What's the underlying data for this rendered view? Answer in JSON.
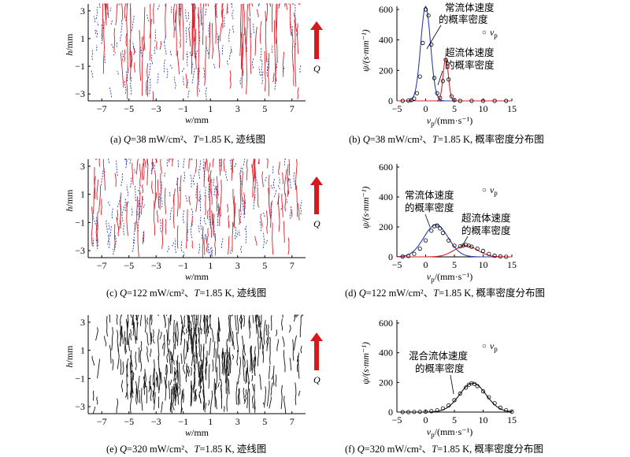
{
  "panels": {
    "a": {
      "label": "(a)",
      "q": "38",
      "Q_unit": "mW/cm²",
      "T": "1.85",
      "desc": "迹线图"
    },
    "b": {
      "label": "(b)",
      "q": "38",
      "desc": "概率密度分布图"
    },
    "c": {
      "label": "(c)",
      "q": "122",
      "desc": "迹线图"
    },
    "d": {
      "label": "(d)",
      "q": "122",
      "desc": "概率密度分布图"
    },
    "e": {
      "label": "(e)",
      "q": "320",
      "desc": "迹线图"
    },
    "f": {
      "label": "(f)",
      "q": "320",
      "desc": "概率密度分布图"
    }
  },
  "track_axes": {
    "ylabel_var": "h",
    "ylabel_unit": "/mm",
    "xlabel_var": "w",
    "xlabel_unit": "/mm",
    "xticks": [
      "−7",
      "−5",
      "−3",
      "−1",
      "1",
      "3",
      "5",
      "7"
    ],
    "yticks": [
      "3",
      "1",
      "−1",
      "−3"
    ],
    "arrow_label": "Q"
  },
  "pdf_axes": {
    "ylabel": "ψ/(s·mm⁻¹)",
    "xlabel": "v_p/(mm·s⁻¹)",
    "xticks": [
      "−5",
      "0",
      "5",
      "10",
      "15"
    ],
    "yticks": [
      "600",
      "400",
      "200",
      "0"
    ],
    "legend_marker": "○",
    "legend_text": "v_p"
  },
  "annotations": {
    "normal_1": "常流体速度",
    "normal_2": "的概率密度",
    "super_1": "超流体速度",
    "super_2": "的概率密度",
    "mixed_1": "混合流体速度",
    "mixed_2": "的概率密度"
  },
  "caption_common": {
    "T_value": "=1.85 K,",
    "sep": "、"
  },
  "colors": {
    "normal": "#2b3ea8",
    "super": "#d8202c",
    "mixed": "#111111",
    "arrow": "#d41a1a"
  },
  "chart_data": [
    {
      "type": "scatter",
      "panel": "b",
      "xlim": [
        -5,
        15
      ],
      "ylim": [
        0,
        600
      ],
      "grid": false,
      "xlabel": "v_p/(mm·s⁻¹)",
      "ylabel": "ψ/(s·mm⁻¹)",
      "legend": "top-right",
      "series": [
        {
          "name": "v_p",
          "points": [
            [
              -4,
              0
            ],
            [
              -3,
              2
            ],
            [
              -2.5,
              5
            ],
            [
              -2,
              15
            ],
            [
              -1.5,
              50
            ],
            [
              -1,
              160
            ],
            [
              -0.5,
              380
            ],
            [
              0,
              600
            ],
            [
              0.5,
              560
            ],
            [
              1,
              370
            ],
            [
              1.5,
              150
            ],
            [
              2,
              50
            ],
            [
              2.5,
              20
            ],
            [
              3,
              130
            ],
            [
              3.5,
              270
            ],
            [
              4,
              140
            ],
            [
              4.5,
              30
            ],
            [
              5,
              5
            ],
            [
              6,
              0
            ],
            [
              8,
              0
            ],
            [
              10,
              0
            ],
            [
              12,
              0
            ],
            [
              14,
              0
            ]
          ]
        }
      ],
      "curves": [
        {
          "role": "normal",
          "amp": 620,
          "mu": 0,
          "sigma": 0.85
        },
        {
          "role": "super",
          "amp": 280,
          "mu": 3.5,
          "sigma": 0.45
        }
      ]
    },
    {
      "type": "scatter",
      "panel": "d",
      "xlim": [
        -5,
        15
      ],
      "ylim": [
        0,
        600
      ],
      "grid": false,
      "xlabel": "v_p/(mm·s⁻¹)",
      "ylabel": "ψ/(s·mm⁻¹)",
      "legend": "top-right",
      "series": [
        {
          "name": "v_p",
          "points": [
            [
              -4,
              2
            ],
            [
              -3,
              6
            ],
            [
              -2,
              20
            ],
            [
              -1,
              55
            ],
            [
              0,
              110
            ],
            [
              1,
              175
            ],
            [
              1.5,
              205
            ],
            [
              2,
              210
            ],
            [
              2.5,
              190
            ],
            [
              3,
              160
            ],
            [
              4,
              110
            ],
            [
              5,
              75
            ],
            [
              6,
              70
            ],
            [
              6.5,
              75
            ],
            [
              7,
              80
            ],
            [
              7.5,
              75
            ],
            [
              8,
              68
            ],
            [
              9,
              55
            ],
            [
              10,
              40
            ],
            [
              11,
              20
            ],
            [
              12,
              8
            ],
            [
              13,
              3
            ],
            [
              14,
              1
            ]
          ]
        }
      ],
      "curves": [
        {
          "role": "normal",
          "amp": 215,
          "mu": 1.8,
          "sigma": 2.1
        },
        {
          "role": "super",
          "amp": 75,
          "mu": 7,
          "sigma": 2.0
        }
      ]
    },
    {
      "type": "scatter",
      "panel": "f",
      "xlim": [
        -5,
        15
      ],
      "ylim": [
        0,
        600
      ],
      "grid": false,
      "xlabel": "v_p/(mm·s⁻¹)",
      "ylabel": "ψ/(s·mm⁻¹)",
      "legend": "top-right",
      "series": [
        {
          "name": "v_p",
          "points": [
            [
              -4,
              0
            ],
            [
              -3,
              0
            ],
            [
              -2,
              1
            ],
            [
              -1,
              2
            ],
            [
              0,
              3
            ],
            [
              1,
              6
            ],
            [
              2,
              12
            ],
            [
              3,
              25
            ],
            [
              4,
              45
            ],
            [
              5,
              80
            ],
            [
              6,
              125
            ],
            [
              7,
              165
            ],
            [
              7.5,
              185
            ],
            [
              8,
              195
            ],
            [
              8.5,
              190
            ],
            [
              9,
              175
            ],
            [
              10,
              140
            ],
            [
              11,
              100
            ],
            [
              12,
              60
            ],
            [
              13,
              30
            ],
            [
              14,
              12
            ],
            [
              15,
              3
            ]
          ]
        }
      ],
      "curves": [
        {
          "role": "mixed",
          "amp": 195,
          "mu": 8.2,
          "sigma": 2.3
        }
      ]
    }
  ]
}
